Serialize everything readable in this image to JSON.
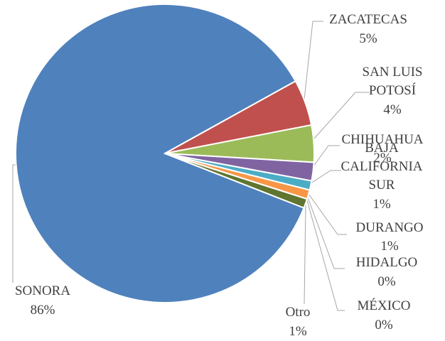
{
  "chart_data": {
    "type": "pie",
    "categories": [
      "SONORA",
      "ZACATECAS",
      "SAN LUIS POTOSÍ",
      "CHIHUAHUA",
      "BAJA CALIFORNIA SUR",
      "DURANGO",
      "HIDALGO",
      "MÉXICO",
      "Otro"
    ],
    "values": [
      86,
      5,
      4,
      2,
      1,
      1,
      0,
      0,
      1
    ],
    "value_labels": [
      "86%",
      "5%",
      "4%",
      "2%",
      "1%",
      "1%",
      "0%",
      "0%",
      "1%"
    ],
    "colors": [
      "#4f81bd",
      "#c0504d",
      "#9bbb59",
      "#8064a2",
      "#4bacc6",
      "#f79646",
      "#2c4d75",
      "#772c2a",
      "#5f7530"
    ]
  }
}
